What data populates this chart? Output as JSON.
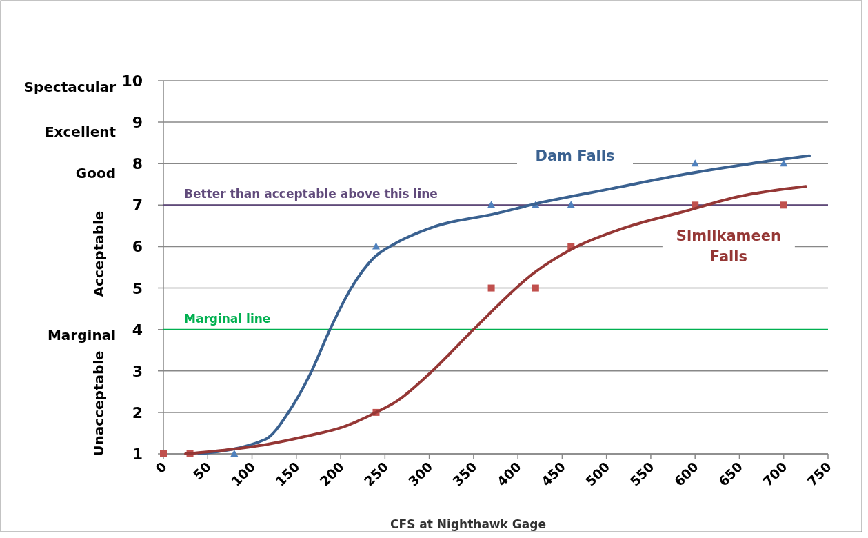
{
  "chart_data": {
    "type": "scatter",
    "xlabel": "CFS at Nighthawk Gage",
    "xlim": [
      0,
      750
    ],
    "xticks": [
      0,
      50,
      100,
      150,
      200,
      250,
      300,
      350,
      400,
      450,
      500,
      550,
      600,
      650,
      700,
      750
    ],
    "ylim": [
      1,
      10
    ],
    "yticks": [
      1,
      2,
      3,
      4,
      5,
      6,
      7,
      8,
      9,
      10
    ],
    "annotations": [
      "Spectacular",
      "Excellent",
      "Good",
      "Acceptable",
      "Marginal",
      "Unacceptable"
    ],
    "grid": "y",
    "legend": false,
    "series": [
      {
        "marker": "triangle",
        "color": "#4f81bd",
        "x": [
          80,
          240,
          370,
          420,
          460,
          600,
          700
        ],
        "values": [
          1,
          6,
          7,
          7,
          7,
          8,
          8
        ]
      },
      {
        "marker": "square",
        "color": "#c0504d",
        "x": [
          0,
          30,
          240,
          370,
          420,
          460,
          600,
          700
        ],
        "values": [
          1,
          1,
          2,
          5,
          5,
          6,
          7,
          7
        ]
      },
      {
        "type": "line",
        "name": "Dam Falls",
        "color": "#3a6190",
        "marker": "none",
        "x": [
          40,
          115,
          142,
          166,
          188,
          212,
          237,
          263,
          303,
          376,
          418,
          504,
          590,
          663,
          729
        ],
        "values": [
          1.0,
          1.35,
          2.03,
          2.94,
          4.0,
          5.0,
          5.72,
          6.09,
          6.46,
          6.8,
          7.02,
          7.39,
          7.75,
          8.0,
          8.19
        ]
      },
      {
        "type": "line",
        "name": "Similkameen Falls",
        "color": "#953735",
        "marker": "none",
        "x": [
          25,
          73,
          117,
          160,
          203,
          237,
          264,
          301,
          350,
          418,
          461,
          519,
          590,
          648,
          725
        ],
        "values": [
          1.0,
          1.1,
          1.23,
          1.42,
          1.65,
          1.97,
          2.28,
          2.95,
          4.0,
          5.36,
          5.94,
          6.44,
          6.86,
          7.2,
          7.45
        ]
      }
    ],
    "ref_lines": [
      {
        "axis": "y",
        "value": 7,
        "label": "Better than acceptable above this line",
        "color": "#604a7b"
      },
      {
        "axis": "y",
        "value": 4,
        "label": "Marginal line",
        "color": "#00b050"
      }
    ]
  }
}
